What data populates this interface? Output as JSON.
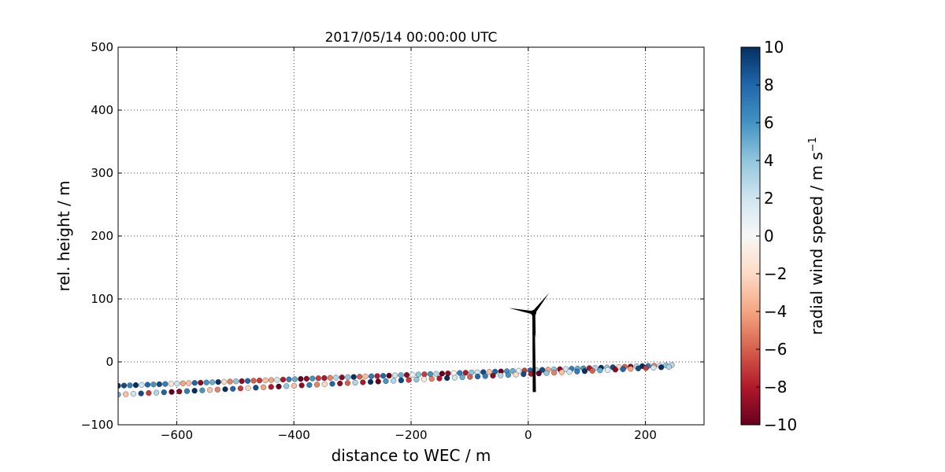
{
  "chart_data": {
    "type": "scatter",
    "title": "2017/05/14 00:00:00 UTC",
    "xlabel": "distance to WEC / m",
    "ylabel": "rel. height / m",
    "xlim": [
      -700,
      300
    ],
    "ylim": [
      -100,
      500
    ],
    "xticks": [
      -600,
      -400,
      -200,
      0,
      200
    ],
    "yticks": [
      -100,
      0,
      100,
      200,
      300,
      400,
      500
    ],
    "grid": true,
    "colorbar": {
      "label": "radial wind speed / m s",
      "label_sup": "−1",
      "range": [
        -10,
        10
      ],
      "ticks": [
        10,
        8,
        6,
        4,
        2,
        0,
        -2,
        -4,
        -6,
        -8,
        -10
      ],
      "colormap": "RdBu",
      "colors": [
        "#67001f",
        "#b2182b",
        "#d6604d",
        "#f4a582",
        "#fddbc7",
        "#f7f7f7",
        "#d1e5f0",
        "#92c5de",
        "#4393c3",
        "#2166ac",
        "#053061"
      ]
    },
    "scan_lines": [
      {
        "name": "",
        "x_start": -700,
        "x_end": 245,
        "y_start": -38,
        "y_end": -5,
        "step": 10,
        "values": [
          10,
          9,
          7,
          10,
          2,
          8,
          6,
          9,
          7,
          -1,
          2,
          -4,
          -3,
          8,
          -9,
          6,
          5,
          10,
          -2,
          -5,
          4,
          -9,
          8,
          -6,
          -7,
          -3,
          -4,
          2,
          -8,
          7,
          5,
          -10,
          -9,
          6,
          -7,
          -8,
          -5,
          3,
          -9,
          4,
          10,
          -6,
          -3,
          7,
          -8,
          8,
          -10,
          2,
          5,
          -9,
          1,
          4,
          -7,
          6,
          3,
          -10,
          -9,
          0,
          7,
          -8,
          4,
          2,
          9,
          -3,
          8,
          -10,
          6,
          5,
          1,
          -7,
          8,
          3,
          9,
          -4,
          4,
          -9,
          2,
          7,
          5,
          6,
          -8,
          3,
          10,
          4,
          9,
          -2,
          -6,
          -9,
          3,
          10,
          7,
          -5,
          2,
          4,
          3
        ]
      },
      {
        "name": "",
        "x_start": -700,
        "x_end": 240,
        "y_start": -52,
        "y_end": -8,
        "step": 13,
        "values": [
          5,
          -3,
          2,
          9,
          -7,
          3,
          8,
          -10,
          -9,
          7,
          10,
          6,
          -3,
          -5,
          10,
          8,
          -7,
          -2,
          9,
          -4,
          -8,
          -10,
          4,
          -3,
          -9,
          7,
          -5,
          -2,
          8,
          -9,
          -6,
          3,
          -8,
          10,
          -10,
          6,
          3,
          9,
          -7,
          4,
          -1,
          -5,
          -8,
          10,
          2,
          5,
          -6,
          8,
          7,
          -9,
          3,
          6,
          -2,
          9,
          -8,
          -10,
          4,
          -5,
          -3,
          2,
          7,
          10,
          -6,
          5,
          1,
          -9,
          8,
          -4,
          9,
          -7,
          2,
          10,
          3
        ]
      }
    ],
    "turbine": {
      "hub_x": 9,
      "hub_y": 78,
      "tower_base_y": -48,
      "blade_length": 43,
      "blade_angles_deg": [
        52,
        169,
        275
      ]
    }
  }
}
